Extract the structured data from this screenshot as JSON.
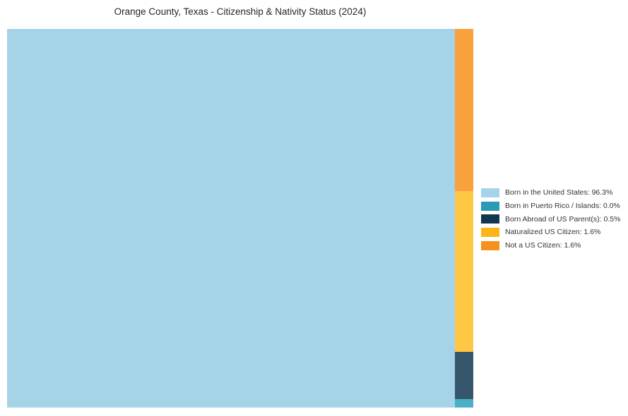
{
  "title": "Orange County, Texas - Citizenship & Nativity Status (2024)",
  "colors": {
    "background": "#ffffff",
    "title_text": "#262626",
    "legend_text": "#333333"
  },
  "chart_data": {
    "type": "treemap",
    "title": "Orange County, Texas - Citizenship & Nativity Status (2024)",
    "legend_position": "right-center",
    "categories": [
      {
        "label": "Born in the United States",
        "percent": 96.3,
        "legend_color": "#a6d3e8",
        "chart_color": "#a5d3e8"
      },
      {
        "label": "Born in Puerto Rico / Islands",
        "percent": 0.0,
        "legend_color": "#2a9ab7",
        "chart_color": "#4bb0c5"
      },
      {
        "label": "Born Abroad of US Parent(s)",
        "percent": 0.5,
        "legend_color": "#12374e",
        "chart_color": "#36576b"
      },
      {
        "label": "Naturalized US Citizen",
        "percent": 1.6,
        "legend_color": "#fcb418",
        "chart_color": "#fec845"
      },
      {
        "label": "Not a US Citizen",
        "percent": 1.6,
        "legend_color": "#f7911e",
        "chart_color": "#f9a13c"
      }
    ],
    "layout": {
      "main_rect_category_index": 0,
      "main_rect_width_pct": 96.06,
      "column_order_top_to_bottom": [
        4,
        3,
        2,
        1
      ],
      "column_segment_height_pct": [
        42.8,
        42.5,
        12.5,
        2.2
      ]
    }
  }
}
